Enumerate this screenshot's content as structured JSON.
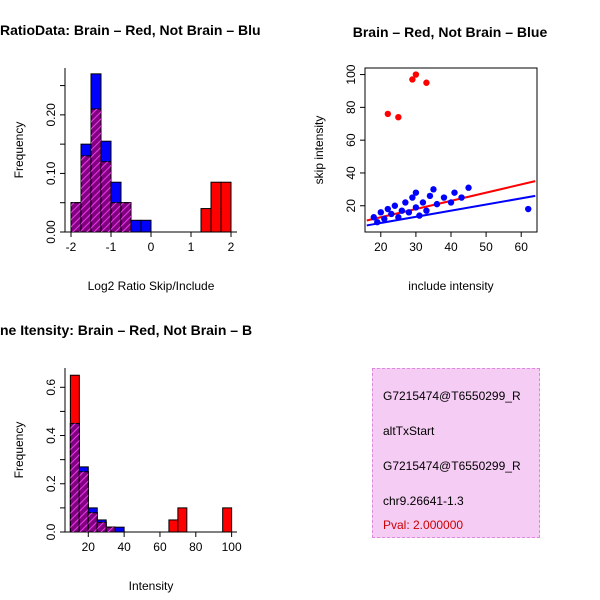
{
  "page": {
    "background": "#ffffff"
  },
  "colors": {
    "red": "#FF0000",
    "blue": "#0000FF",
    "overlap_fill": "#800080",
    "overlap_hatch": "#E53BE5",
    "axis": "#000000",
    "info_box_bg": "#F5CCF4",
    "info_box_border": "#DD8ADD",
    "pval_color": "#CC0000"
  },
  "panels": {
    "info_box": {
      "lines": [
        {
          "text": "G7215474@T6550299_R",
          "color": "#000000"
        },
        {
          "text": "altTxStart",
          "color": "#000000"
        },
        {
          "text": "G7215474@T6550299_R",
          "color": "#000000"
        },
        {
          "text": "chr9.26641-1.3",
          "color": "#000000"
        },
        {
          "text": "Pval: 2.000000",
          "color": "#CC0000"
        }
      ]
    }
  },
  "chart_data": [
    {
      "type": "bar",
      "subtype": "overlaid-histogram",
      "target": "svg-ratio-hist",
      "title": "RatioData: Brain – Red, Not Brain – Blu",
      "xlabel": "Log2 Ratio Skip/Include",
      "ylabel": "Frequency",
      "xlim": [
        -2.15,
        2.15
      ],
      "ylim": [
        0,
        0.28
      ],
      "grid": false,
      "legend": "none",
      "xticks": [
        {
          "v": -2,
          "label": "-2"
        },
        {
          "v": -1,
          "label": "-1"
        },
        {
          "v": 0,
          "label": "0"
        },
        {
          "v": 1,
          "label": "1"
        },
        {
          "v": 2,
          "label": "2"
        }
      ],
      "yticks": [
        {
          "v": 0,
          "label": "0.00"
        },
        {
          "v": 0.05,
          "label": ""
        },
        {
          "v": 0.1,
          "label": "0.10"
        },
        {
          "v": 0.15,
          "label": ""
        },
        {
          "v": 0.2,
          "label": "0.20"
        },
        {
          "v": 0.25,
          "label": ""
        }
      ],
      "bin_start": -2,
      "bin_width": 0.25,
      "series": [
        {
          "name": "Brain",
          "color": "red",
          "values": [
            0.05,
            0.13,
            0.21,
            0.12,
            0.05,
            0.05,
            0,
            0,
            0,
            0,
            0,
            0,
            0,
            0.04,
            0.085,
            0.085
          ]
        },
        {
          "name": "Not Brain",
          "color": "blue",
          "values": [
            0.05,
            0.15,
            0.27,
            0.155,
            0.085,
            0.05,
            0.02,
            0.02,
            0,
            0,
            0,
            0,
            0,
            0,
            0,
            0
          ]
        }
      ]
    },
    {
      "type": "scatter",
      "target": "svg-scatter",
      "title": "Brain – Red, Not Brain – Blue",
      "xlabel": "include intensity",
      "ylabel": "skip intensity",
      "xlim": [
        15.5,
        64.5
      ],
      "ylim": [
        4,
        104
      ],
      "grid": false,
      "legend": "none",
      "xticks": [
        {
          "v": 20,
          "label": "20"
        },
        {
          "v": 30,
          "label": "30"
        },
        {
          "v": 40,
          "label": "40"
        },
        {
          "v": 50,
          "label": "50"
        },
        {
          "v": 60,
          "label": "60"
        }
      ],
      "yticks": [
        {
          "v": 20,
          "label": "20"
        },
        {
          "v": 40,
          "label": "40"
        },
        {
          "v": 60,
          "label": "60"
        },
        {
          "v": 80,
          "label": "80"
        },
        {
          "v": 100,
          "label": "100"
        }
      ],
      "series": [
        {
          "name": "Brain",
          "color": "red",
          "points": [
            [
              22,
              76
            ],
            [
              25,
              74
            ],
            [
              29,
              97
            ],
            [
              30,
              100
            ],
            [
              33,
              95
            ]
          ]
        },
        {
          "name": "Not Brain",
          "color": "blue",
          "points": [
            [
              18,
              13
            ],
            [
              19,
              10
            ],
            [
              20,
              16
            ],
            [
              21,
              12
            ],
            [
              22,
              18
            ],
            [
              23,
              15
            ],
            [
              24,
              20
            ],
            [
              25,
              13
            ],
            [
              26,
              17
            ],
            [
              27,
              22
            ],
            [
              28,
              16
            ],
            [
              29,
              25
            ],
            [
              30,
              19
            ],
            [
              30,
              28
            ],
            [
              31,
              14
            ],
            [
              32,
              22
            ],
            [
              33,
              17
            ],
            [
              34,
              26
            ],
            [
              35,
              30
            ],
            [
              36,
              21
            ],
            [
              38,
              25
            ],
            [
              40,
              22
            ],
            [
              41,
              28
            ],
            [
              43,
              25
            ],
            [
              45,
              31
            ],
            [
              62,
              18
            ]
          ]
        }
      ],
      "lines": [
        {
          "name": "not-brain-fit",
          "color": "blue",
          "x": [
            16,
            64
          ],
          "y": [
            8,
            26
          ]
        },
        {
          "name": "brain-fit",
          "color": "red",
          "x": [
            16,
            64
          ],
          "y": [
            11,
            35
          ]
        }
      ]
    },
    {
      "type": "bar",
      "subtype": "overlaid-histogram",
      "target": "svg-intensity-hist",
      "title": "ne Itensity: Brain – Red, Not Brain – B",
      "xlabel": "Intensity",
      "ylabel": "Frequency",
      "xlim": [
        7,
        103
      ],
      "ylim": [
        0,
        0.68
      ],
      "grid": false,
      "legend": "none",
      "xticks": [
        {
          "v": 20,
          "label": "20"
        },
        {
          "v": 40,
          "label": "40"
        },
        {
          "v": 60,
          "label": "60"
        },
        {
          "v": 80,
          "label": "80"
        },
        {
          "v": 100,
          "label": "100"
        }
      ],
      "yticks": [
        {
          "v": 0,
          "label": "0.0"
        },
        {
          "v": 0.1,
          "label": ""
        },
        {
          "v": 0.2,
          "label": "0.2"
        },
        {
          "v": 0.3,
          "label": ""
        },
        {
          "v": 0.4,
          "label": "0.4"
        },
        {
          "v": 0.5,
          "label": ""
        },
        {
          "v": 0.6,
          "label": "0.6"
        }
      ],
      "bin_start": 10,
      "bin_width": 5,
      "series": [
        {
          "name": "Brain",
          "color": "red",
          "values": [
            0.65,
            0.25,
            0.08,
            0.04,
            0.02,
            0,
            0,
            0,
            0,
            0,
            0,
            0.05,
            0.1,
            0,
            0,
            0,
            0,
            0.1
          ]
        },
        {
          "name": "Not Brain",
          "color": "blue",
          "values": [
            0.45,
            0.27,
            0.1,
            0.05,
            0.02,
            0.02,
            0,
            0,
            0,
            0,
            0,
            0,
            0,
            0,
            0,
            0,
            0,
            0
          ]
        }
      ]
    }
  ]
}
